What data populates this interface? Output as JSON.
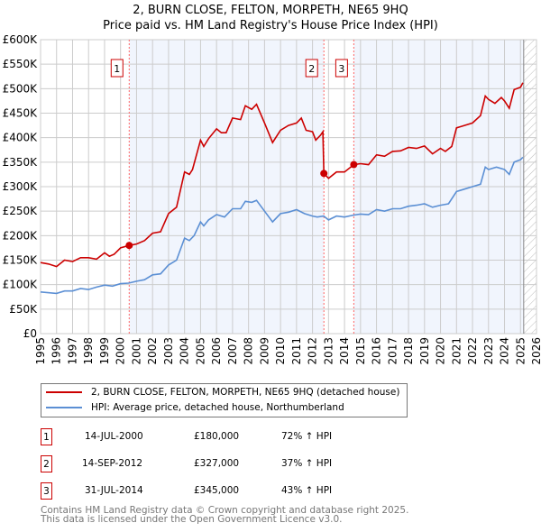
{
  "chart_data": {
    "type": "line",
    "title": "2, BURN CLOSE, FELTON, MORPETH, NE65 9HQ",
    "subtitle": "Price paid vs. HM Land Registry's House Price Index (HPI)",
    "xlabel": "",
    "ylabel": "",
    "xlim": [
      1995,
      2026
    ],
    "ylim": [
      0,
      600000
    ],
    "grid": true,
    "y_ticks": [
      "£0",
      "£50K",
      "£100K",
      "£150K",
      "£200K",
      "£250K",
      "£300K",
      "£350K",
      "£400K",
      "£450K",
      "£500K",
      "£550K",
      "£600K"
    ],
    "x_ticks": [
      "1995",
      "1996",
      "1997",
      "1998",
      "1999",
      "2000",
      "2001",
      "2002",
      "2003",
      "2004",
      "2005",
      "2006",
      "2007",
      "2008",
      "2009",
      "2010",
      "2011",
      "2012",
      "2013",
      "2014",
      "2015",
      "2016",
      "2017",
      "2018",
      "2019",
      "2020",
      "2021",
      "2022",
      "2023",
      "2024",
      "2025",
      "2026"
    ],
    "series": [
      {
        "name": "2, BURN CLOSE, FELTON, MORPETH, NE65 9HQ (detached house)",
        "color": "#cc0000",
        "x": [
          1995,
          1995.5,
          1996,
          1996.5,
          1997,
          1997.5,
          1998,
          1998.5,
          1999,
          1999.3,
          1999.6,
          2000,
          2000.54,
          2001,
          2001.5,
          2002,
          2002.5,
          2003,
          2003.5,
          2004,
          2004.3,
          2004.5,
          2005,
          2005.2,
          2005.5,
          2006,
          2006.3,
          2006.6,
          2007,
          2007.5,
          2007.8,
          2008.2,
          2008.5,
          2009,
          2009.5,
          2010,
          2010.5,
          2011,
          2011.3,
          2011.6,
          2012,
          2012.2,
          2012.5,
          2012.65,
          2012.71,
          2013,
          2013.5,
          2014,
          2014.58,
          2015,
          2015.5,
          2016,
          2016.5,
          2017,
          2017.5,
          2018,
          2018.5,
          2019,
          2019.5,
          2020,
          2020.3,
          2020.7,
          2021,
          2021.5,
          2022,
          2022.5,
          2022.8,
          2023,
          2023.4,
          2023.8,
          2024,
          2024.3,
          2024.6,
          2025,
          2025.15
        ],
        "values": [
          145,
          142,
          137,
          150,
          147,
          155,
          155,
          152,
          165,
          158,
          162,
          175,
          180,
          183,
          190,
          205,
          208,
          245,
          258,
          330,
          325,
          335,
          395,
          382,
          398,
          418,
          410,
          410,
          440,
          437,
          465,
          458,
          468,
          430,
          390,
          415,
          425,
          430,
          440,
          415,
          412,
          395,
          405,
          412,
          327,
          317,
          330,
          330,
          345,
          347,
          345,
          365,
          362,
          372,
          373,
          380,
          378,
          383,
          367,
          378,
          372,
          382,
          420,
          425,
          430,
          445,
          485,
          478,
          470,
          482,
          475,
          460,
          498,
          503,
          512
        ]
      },
      {
        "name": "HPI: Average price, detached house, Northumberland",
        "color": "#5b8fd4",
        "x": [
          1995,
          1996,
          1996.5,
          1997,
          1997.5,
          1998,
          1998.5,
          1999,
          1999.5,
          2000,
          2000.5,
          2001,
          2001.5,
          2002,
          2002.5,
          2003,
          2003.5,
          2004,
          2004.3,
          2004.6,
          2005,
          2005.2,
          2005.5,
          2006,
          2006.5,
          2007,
          2007.5,
          2007.8,
          2008.2,
          2008.5,
          2009,
          2009.5,
          2010,
          2010.5,
          2011,
          2011.5,
          2012,
          2012.3,
          2012.7,
          2013,
          2013.5,
          2014,
          2014.58,
          2015,
          2015.5,
          2016,
          2016.5,
          2017,
          2017.5,
          2018,
          2018.5,
          2019,
          2019.5,
          2020,
          2020.5,
          2021,
          2021.5,
          2022,
          2022.5,
          2022.8,
          2023,
          2023.5,
          2024,
          2024.3,
          2024.6,
          2025,
          2025.15
        ],
        "values": [
          85,
          82,
          87,
          87,
          92,
          90,
          95,
          99,
          97,
          102,
          103,
          107,
          110,
          120,
          122,
          140,
          150,
          195,
          190,
          200,
          228,
          220,
          232,
          243,
          238,
          255,
          255,
          270,
          268,
          272,
          250,
          228,
          245,
          248,
          253,
          245,
          240,
          238,
          240,
          232,
          240,
          238,
          242,
          244,
          243,
          253,
          250,
          255,
          255,
          260,
          262,
          265,
          258,
          262,
          265,
          290,
          295,
          300,
          305,
          340,
          335,
          340,
          335,
          325,
          350,
          355,
          360
        ]
      }
    ],
    "value_unit": "thousands GBP",
    "sales": [
      {
        "label": "1",
        "x": 2000.54,
        "value": 180
      },
      {
        "label": "2",
        "x": 2012.71,
        "value": 327
      },
      {
        "label": "3",
        "x": 2014.58,
        "value": 345
      }
    ],
    "shaded_ranges": [
      [
        2000.54,
        2012.71
      ],
      [
        2014.58,
        2025.2
      ]
    ],
    "hatched_from": 2025.2
  },
  "legend": {
    "red": "2, BURN CLOSE, FELTON, MORPETH, NE65 9HQ (detached house)",
    "blue": "HPI: Average price, detached house, Northumberland"
  },
  "table": [
    {
      "num": "1",
      "date": "14-JUL-2000",
      "price": "£180,000",
      "hpi": "72% ↑ HPI"
    },
    {
      "num": "2",
      "date": "14-SEP-2012",
      "price": "£327,000",
      "hpi": "37% ↑ HPI"
    },
    {
      "num": "3",
      "date": "31-JUL-2014",
      "price": "£345,000",
      "hpi": "43% ↑ HPI"
    }
  ],
  "footer": {
    "line1": "Contains HM Land Registry data © Crown copyright and database right 2025.",
    "line2": "This data is licensed under the Open Government Licence v3.0."
  }
}
